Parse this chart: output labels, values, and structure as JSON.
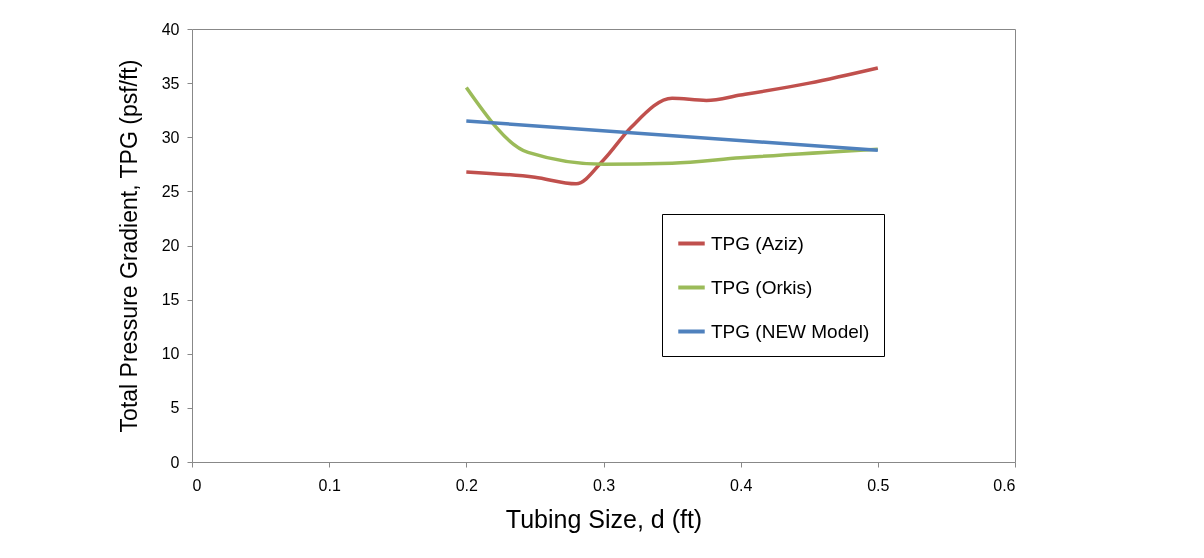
{
  "chart_data": {
    "type": "line",
    "xlabel": "Tubing Size, d (ft)",
    "ylabel": "Total Pressure Gradient, TPG (psf/ft)",
    "xlim": [
      0,
      0.6
    ],
    "xticks": [
      0,
      0.1,
      0.2,
      0.3,
      0.4,
      0.5,
      0.6
    ],
    "ylim": [
      0,
      40
    ],
    "yticks": [
      0,
      5,
      10,
      15,
      20,
      25,
      30,
      35,
      40
    ],
    "grid": false,
    "legend": "right",
    "marker": "none",
    "line_style": "solid",
    "series": [
      {
        "name": "TPG (Aziz)",
        "color": "#c0504d",
        "x": [
          0.2,
          0.25,
          0.28,
          0.3,
          0.32,
          0.35,
          0.375,
          0.4,
          0.45,
          0.5
        ],
        "values": [
          26.8,
          26.3,
          25.7,
          27.9,
          30.9,
          33.6,
          33.4,
          33.9,
          35,
          36.4
        ]
      },
      {
        "name": "TPG (Orkis)",
        "color": "#9bbb59",
        "x": [
          0.2,
          0.245,
          0.3,
          0.35,
          0.4,
          0.5
        ],
        "values": [
          34.6,
          28.6,
          27.5,
          27.6,
          28.1,
          28.9
        ]
      },
      {
        "name": "TPG (NEW Model)",
        "color": "#4f81bd",
        "x": [
          0.2,
          0.5
        ],
        "values": [
          31.5,
          28.8
        ]
      }
    ]
  }
}
